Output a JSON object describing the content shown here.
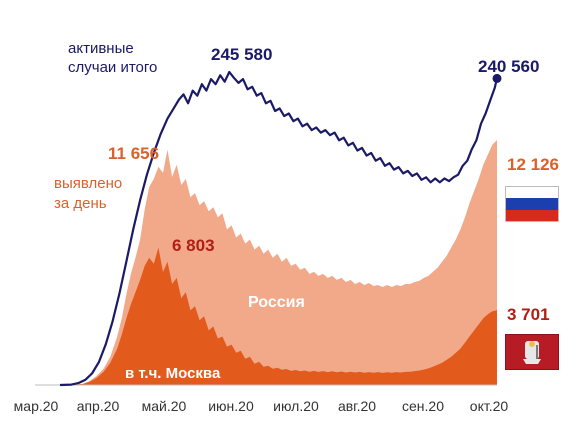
{
  "chart_data": {
    "type": "area",
    "x_labels": [
      "мар.20",
      "апр.20",
      "май.20",
      "июн.20",
      "июл.20",
      "авг.20",
      "сен.20",
      "окт.20"
    ],
    "series": [
      {
        "name": "активные случаи итого",
        "kind": "line",
        "color": "#1a1a66",
        "peak_value": "245 580",
        "last_value": "240 560",
        "points": [
          [
            0,
            0
          ],
          [
            5,
            300
          ],
          [
            8,
            1500
          ],
          [
            11,
            4000
          ],
          [
            14,
            9000
          ],
          [
            17,
            18000
          ],
          [
            20,
            32000
          ],
          [
            23,
            50000
          ],
          [
            26,
            72000
          ],
          [
            29,
            97000
          ],
          [
            32,
            122000
          ],
          [
            35,
            145000
          ],
          [
            38,
            165000
          ],
          [
            41,
            182000
          ],
          [
            44,
            197000
          ],
          [
            47,
            209000
          ],
          [
            50,
            218000
          ],
          [
            52,
            224000
          ],
          [
            54,
            228000
          ],
          [
            56,
            221000
          ],
          [
            58,
            231000
          ],
          [
            60,
            227000
          ],
          [
            62,
            236000
          ],
          [
            64,
            231000
          ],
          [
            66,
            240000
          ],
          [
            68,
            236000
          ],
          [
            70,
            243000
          ],
          [
            72,
            238000
          ],
          [
            74,
            245580
          ],
          [
            76,
            241000
          ],
          [
            78,
            237000
          ],
          [
            80,
            240000
          ],
          [
            82,
            232000
          ],
          [
            84,
            234000
          ],
          [
            86,
            227000
          ],
          [
            88,
            229000
          ],
          [
            90,
            221000
          ],
          [
            92,
            223000
          ],
          [
            94,
            215000
          ],
          [
            96,
            217000
          ],
          [
            98,
            211000
          ],
          [
            100,
            213000
          ],
          [
            102,
            207000
          ],
          [
            104,
            209000
          ],
          [
            106,
            203000
          ],
          [
            108,
            205000
          ],
          [
            110,
            200000
          ],
          [
            112,
            202000
          ],
          [
            114,
            198000
          ],
          [
            116,
            200000
          ],
          [
            118,
            196000
          ],
          [
            120,
            198000
          ],
          [
            122,
            192000
          ],
          [
            124,
            194000
          ],
          [
            126,
            188000
          ],
          [
            128,
            190000
          ],
          [
            130,
            184000
          ],
          [
            132,
            186000
          ],
          [
            134,
            180000
          ],
          [
            136,
            182000
          ],
          [
            138,
            176000
          ],
          [
            140,
            178000
          ],
          [
            142,
            172000
          ],
          [
            144,
            174000
          ],
          [
            146,
            169000
          ],
          [
            148,
            171000
          ],
          [
            150,
            166000
          ],
          [
            152,
            168000
          ],
          [
            154,
            164000
          ],
          [
            156,
            166000
          ],
          [
            158,
            161000
          ],
          [
            160,
            163000
          ],
          [
            162,
            159000
          ],
          [
            164,
            162000
          ],
          [
            166,
            159000
          ],
          [
            168,
            162000
          ],
          [
            170,
            160000
          ],
          [
            172,
            163000
          ],
          [
            174,
            165000
          ],
          [
            176,
            172000
          ],
          [
            178,
            176000
          ],
          [
            180,
            185000
          ],
          [
            182,
            192000
          ],
          [
            184,
            205000
          ],
          [
            186,
            213000
          ],
          [
            188,
            223000
          ],
          [
            190,
            233000
          ],
          [
            191,
            240560
          ]
        ]
      },
      {
        "name": "Россия",
        "kind": "area",
        "color": "#f2a98a",
        "peak_value": "11 656",
        "last_value": "12 126",
        "points": [
          [
            0,
            0
          ],
          [
            5,
            20
          ],
          [
            10,
            60
          ],
          [
            13,
            200
          ],
          [
            16,
            450
          ],
          [
            19,
            800
          ],
          [
            22,
            1400
          ],
          [
            25,
            2400
          ],
          [
            27,
            3300
          ],
          [
            29,
            4500
          ],
          [
            31,
            5500
          ],
          [
            33,
            6300
          ],
          [
            35,
            7200
          ],
          [
            37,
            8700
          ],
          [
            39,
            9800
          ],
          [
            41,
            10200
          ],
          [
            43,
            10800
          ],
          [
            45,
            10500
          ],
          [
            47,
            11656
          ],
          [
            49,
            10300
          ],
          [
            51,
            10900
          ],
          [
            53,
            9900
          ],
          [
            55,
            10200
          ],
          [
            57,
            9300
          ],
          [
            59,
            9500
          ],
          [
            61,
            8900
          ],
          [
            63,
            9100
          ],
          [
            65,
            8600
          ],
          [
            67,
            8800
          ],
          [
            69,
            8300
          ],
          [
            71,
            8500
          ],
          [
            73,
            7700
          ],
          [
            75,
            7900
          ],
          [
            77,
            7300
          ],
          [
            79,
            7500
          ],
          [
            81,
            7000
          ],
          [
            83,
            7200
          ],
          [
            85,
            6700
          ],
          [
            87,
            6900
          ],
          [
            89,
            6500
          ],
          [
            91,
            6700
          ],
          [
            93,
            6300
          ],
          [
            95,
            6500
          ],
          [
            97,
            6100
          ],
          [
            99,
            6300
          ],
          [
            101,
            5900
          ],
          [
            103,
            6000
          ],
          [
            105,
            5700
          ],
          [
            107,
            5800
          ],
          [
            109,
            5500
          ],
          [
            111,
            5600
          ],
          [
            113,
            5400
          ],
          [
            115,
            5500
          ],
          [
            117,
            5300
          ],
          [
            119,
            5400
          ],
          [
            121,
            5200
          ],
          [
            123,
            5300
          ],
          [
            125,
            5100
          ],
          [
            127,
            5200
          ],
          [
            129,
            5000
          ],
          [
            131,
            5100
          ],
          [
            133,
            4950
          ],
          [
            135,
            5050
          ],
          [
            137,
            4900
          ],
          [
            139,
            4950
          ],
          [
            141,
            4850
          ],
          [
            143,
            4950
          ],
          [
            145,
            4850
          ],
          [
            147,
            4950
          ],
          [
            149,
            4900
          ],
          [
            151,
            5000
          ],
          [
            153,
            5000
          ],
          [
            155,
            5100
          ],
          [
            157,
            5150
          ],
          [
            159,
            5300
          ],
          [
            161,
            5400
          ],
          [
            163,
            5600
          ],
          [
            165,
            5800
          ],
          [
            167,
            6100
          ],
          [
            169,
            6400
          ],
          [
            171,
            6800
          ],
          [
            173,
            7200
          ],
          [
            175,
            7700
          ],
          [
            177,
            8300
          ],
          [
            179,
            9000
          ],
          [
            181,
            9600
          ],
          [
            183,
            10200
          ],
          [
            185,
            10900
          ],
          [
            187,
            11400
          ],
          [
            189,
            11900
          ],
          [
            191,
            12126
          ]
        ]
      },
      {
        "name": "в т.ч. Москва",
        "kind": "area",
        "color": "#e35a1d",
        "peak_value": "6 803",
        "last_value": "3 701",
        "points": [
          [
            0,
            0
          ],
          [
            5,
            15
          ],
          [
            10,
            50
          ],
          [
            13,
            160
          ],
          [
            16,
            350
          ],
          [
            19,
            650
          ],
          [
            22,
            1100
          ],
          [
            25,
            1800
          ],
          [
            27,
            2500
          ],
          [
            29,
            3300
          ],
          [
            31,
            4000
          ],
          [
            33,
            4600
          ],
          [
            35,
            5200
          ],
          [
            37,
            5900
          ],
          [
            39,
            6300
          ],
          [
            41,
            6000
          ],
          [
            43,
            6803
          ],
          [
            45,
            5600
          ],
          [
            47,
            6100
          ],
          [
            49,
            5000
          ],
          [
            51,
            5300
          ],
          [
            53,
            4300
          ],
          [
            55,
            4600
          ],
          [
            57,
            3700
          ],
          [
            59,
            3900
          ],
          [
            61,
            3200
          ],
          [
            63,
            3400
          ],
          [
            65,
            2700
          ],
          [
            67,
            2900
          ],
          [
            69,
            2300
          ],
          [
            71,
            2400
          ],
          [
            73,
            1900
          ],
          [
            75,
            2000
          ],
          [
            77,
            1600
          ],
          [
            79,
            1700
          ],
          [
            81,
            1300
          ],
          [
            83,
            1400
          ],
          [
            85,
            1050
          ],
          [
            87,
            1150
          ],
          [
            89,
            900
          ],
          [
            91,
            950
          ],
          [
            93,
            800
          ],
          [
            95,
            850
          ],
          [
            97,
            750
          ],
          [
            99,
            790
          ],
          [
            101,
            700
          ],
          [
            103,
            740
          ],
          [
            105,
            680
          ],
          [
            107,
            720
          ],
          [
            109,
            660
          ],
          [
            111,
            700
          ],
          [
            113,
            650
          ],
          [
            115,
            690
          ],
          [
            117,
            640
          ],
          [
            119,
            680
          ],
          [
            121,
            630
          ],
          [
            123,
            670
          ],
          [
            125,
            620
          ],
          [
            127,
            660
          ],
          [
            129,
            620
          ],
          [
            131,
            650
          ],
          [
            133,
            610
          ],
          [
            135,
            640
          ],
          [
            137,
            610
          ],
          [
            139,
            640
          ],
          [
            141,
            600
          ],
          [
            143,
            630
          ],
          [
            145,
            610
          ],
          [
            147,
            640
          ],
          [
            149,
            620
          ],
          [
            151,
            650
          ],
          [
            153,
            660
          ],
          [
            155,
            690
          ],
          [
            157,
            720
          ],
          [
            159,
            760
          ],
          [
            161,
            820
          ],
          [
            163,
            900
          ],
          [
            165,
            1000
          ],
          [
            167,
            1100
          ],
          [
            169,
            1250
          ],
          [
            171,
            1400
          ],
          [
            173,
            1600
          ],
          [
            175,
            1800
          ],
          [
            177,
            2100
          ],
          [
            179,
            2400
          ],
          [
            181,
            2700
          ],
          [
            183,
            3000
          ],
          [
            185,
            3300
          ],
          [
            187,
            3500
          ],
          [
            189,
            3650
          ],
          [
            191,
            3701
          ]
        ]
      }
    ],
    "annotations": {
      "active_label": "активные\nслучаи итого",
      "daily_label": "выявлено\nза день"
    },
    "colors": {
      "navy": "#1a1a66",
      "russia": "#f2a98a",
      "moscow": "#e35a1d",
      "orange_text": "#d9622b",
      "red_text": "#b01e16"
    }
  },
  "legend": {
    "russia_flag_icon": "russia-flag-icon",
    "moscow_flag_icon": "moscow-flag-icon"
  }
}
